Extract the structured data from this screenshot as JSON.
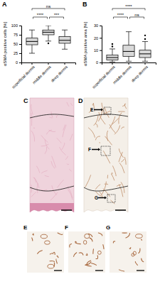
{
  "chart_data": [
    {
      "type": "box",
      "title": "A",
      "y_label": "αSMA positive cells [%]",
      "categories": [
        "superficial dermis",
        "middle dermis",
        "deep dermis"
      ],
      "boxes": [
        {
          "whisker_low": 25,
          "q1": 48,
          "median": 57,
          "q3": 66,
          "whisker_high": 88,
          "outliers": []
        },
        {
          "whisker_low": 58,
          "q1": 75,
          "median": 82,
          "q3": 88,
          "whisker_high": 100,
          "outliers": [
            52
          ]
        },
        {
          "whisker_low": 36,
          "q1": 52,
          "median": 60,
          "q3": 70,
          "whisker_high": 88,
          "outliers": []
        }
      ],
      "color": "#d9d9d9",
      "ylim": [
        0,
        100
      ],
      "yticks": [
        0,
        25,
        50,
        75,
        100
      ],
      "comparisons": [
        {
          "pair": [
            0,
            1
          ],
          "label": "****"
        },
        {
          "pair": [
            1,
            2
          ],
          "label": "***"
        },
        {
          "pair": [
            0,
            2
          ],
          "label": "ns"
        }
      ]
    },
    {
      "type": "box",
      "title": "B",
      "y_label": "αSMA positive area [%]",
      "categories": [
        "superficial dermis",
        "middle dermis",
        "deep dermis"
      ],
      "boxes": [
        {
          "whisker_low": 0.5,
          "q1": 2,
          "median": 4,
          "q3": 6,
          "whisker_high": 11,
          "outliers": [
            13,
            15
          ]
        },
        {
          "whisker_low": 1,
          "q1": 5,
          "median": 9,
          "q3": 14,
          "whisker_high": 25,
          "outliers": []
        },
        {
          "whisker_low": 1,
          "q1": 4,
          "median": 7,
          "q3": 10,
          "whisker_high": 17,
          "outliers": [
            19,
            22
          ]
        }
      ],
      "color": "#d9d9d9",
      "ylim": [
        0,
        30
      ],
      "yticks": [
        0,
        10,
        20,
        30
      ],
      "comparisons": [
        {
          "pair": [
            0,
            1
          ],
          "label": "****"
        },
        {
          "pair": [
            1,
            2
          ],
          "label": "ns"
        },
        {
          "pair": [
            0,
            2
          ],
          "label": "****"
        }
      ]
    }
  ],
  "images": {
    "panels": [
      {
        "label": "C"
      },
      {
        "label": "D",
        "callouts": [
          "E",
          "F",
          "G"
        ]
      },
      {
        "label": "E"
      },
      {
        "label": "F"
      },
      {
        "label": "G"
      }
    ]
  }
}
